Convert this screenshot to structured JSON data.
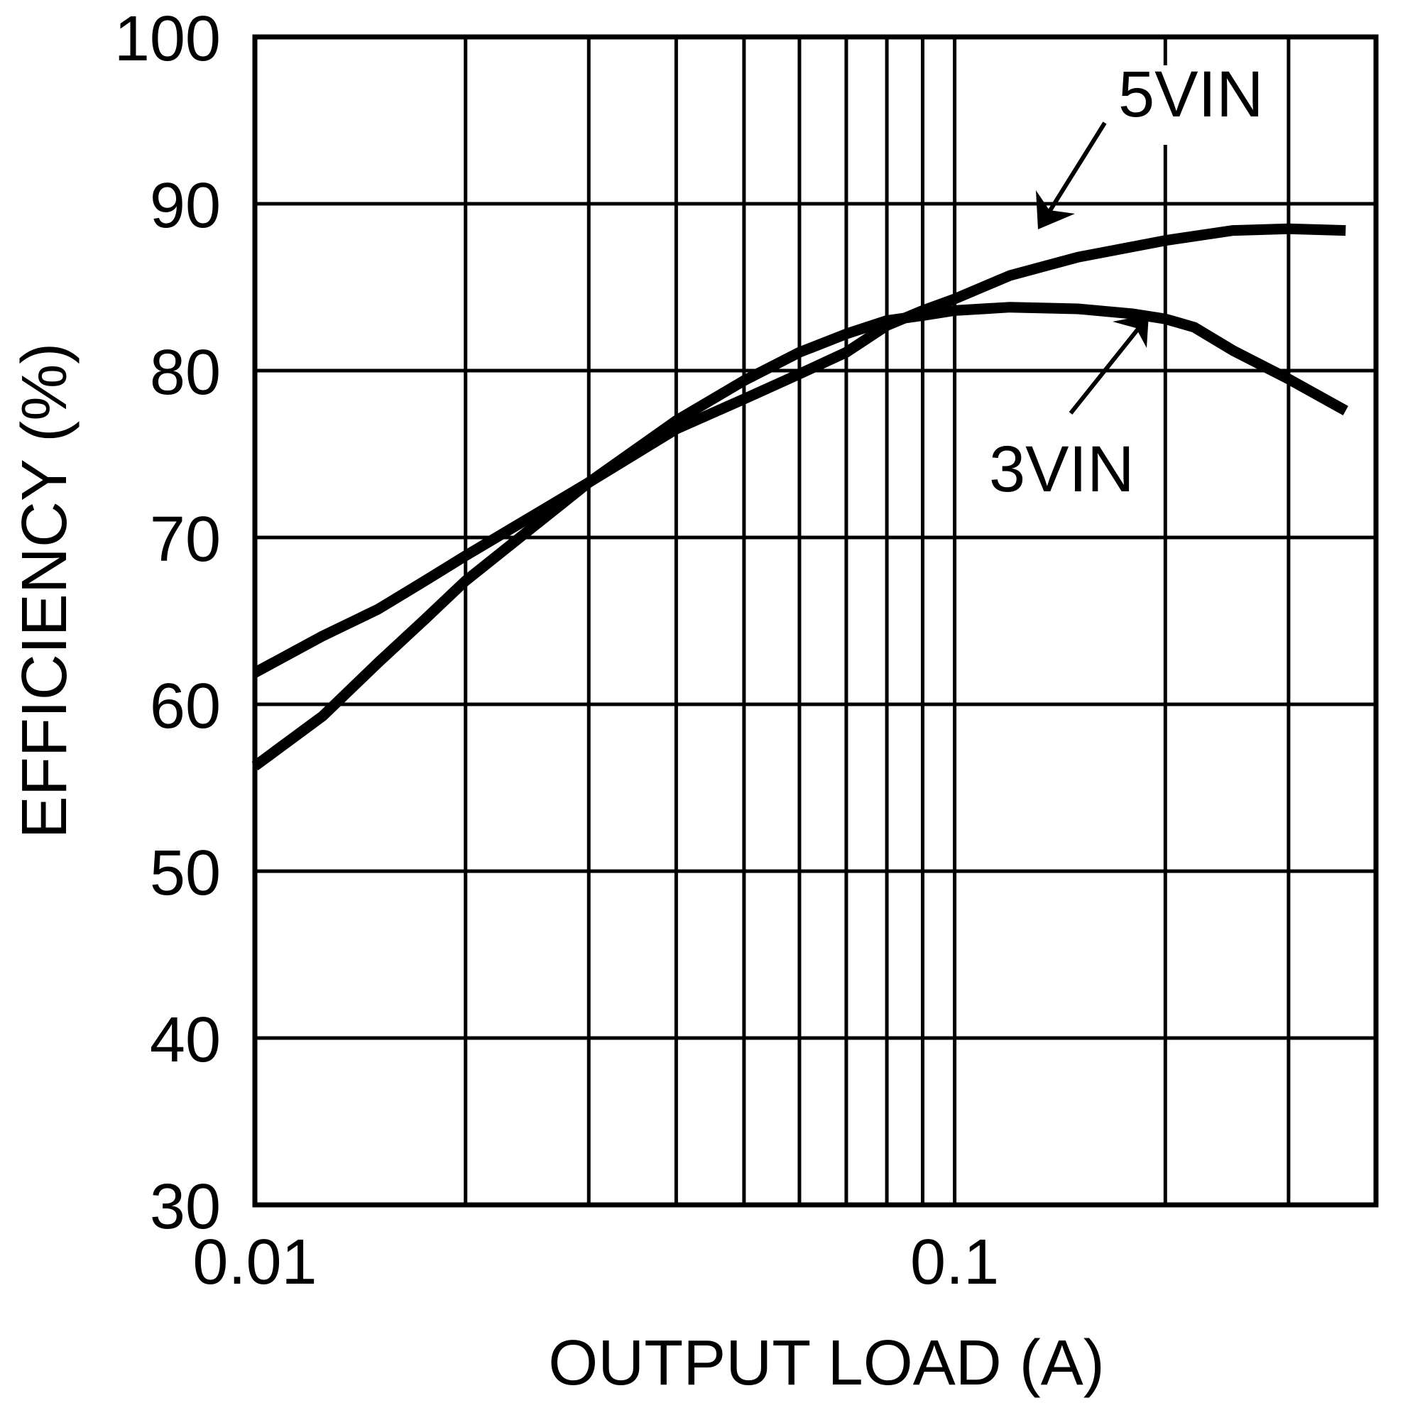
{
  "chart_data": {
    "type": "line",
    "title": "",
    "xlabel": "OUTPUT LOAD (A)",
    "ylabel": "EFFICIENCY (%)",
    "xscale": "log",
    "xlim": [
      0.01,
      0.4
    ],
    "ylim": [
      30,
      100
    ],
    "grid": true,
    "legend": "inline annotations with arrows",
    "x_tick_labels": [
      "0.01",
      "0.1"
    ],
    "x_ticks": [
      0.01,
      0.1
    ],
    "x_minor_gridlines": [
      0.02,
      0.03,
      0.04,
      0.05,
      0.06,
      0.07,
      0.08,
      0.09,
      0.2,
      0.3
    ],
    "y_ticks": [
      30,
      40,
      50,
      60,
      70,
      80,
      90,
      100
    ],
    "y_tick_labels": [
      "30",
      "40",
      "50",
      "60",
      "70",
      "80",
      "90",
      "100"
    ],
    "series": [
      {
        "name": "5VIN",
        "x": [
          0.01,
          0.0125,
          0.015,
          0.0175,
          0.02,
          0.03,
          0.04,
          0.05,
          0.06,
          0.07,
          0.08,
          0.09,
          0.1,
          0.12,
          0.15,
          0.2,
          0.25,
          0.3,
          0.362
        ],
        "values": [
          61.9,
          64.1,
          65.7,
          67.4,
          68.9,
          73.3,
          76.5,
          78.3,
          79.8,
          81.1,
          82.7,
          83.6,
          84.3,
          85.7,
          86.8,
          87.8,
          88.4,
          88.5,
          88.4
        ]
      },
      {
        "name": "3VIN",
        "x": [
          0.01,
          0.0125,
          0.015,
          0.0175,
          0.02,
          0.03,
          0.04,
          0.05,
          0.06,
          0.07,
          0.08,
          0.09,
          0.1,
          0.12,
          0.15,
          0.18,
          0.2,
          0.22,
          0.25,
          0.3,
          0.362
        ],
        "values": [
          56.3,
          59.3,
          62.5,
          65.1,
          67.4,
          73.3,
          77.0,
          79.4,
          81.1,
          82.2,
          83.0,
          83.3,
          83.6,
          83.8,
          83.7,
          83.4,
          83.1,
          82.6,
          81.2,
          79.5,
          77.6
        ]
      }
    ],
    "annotations": [
      {
        "text": "5VIN",
        "series": "5VIN"
      },
      {
        "text": "3VIN",
        "series": "3VIN"
      }
    ]
  },
  "colors": {
    "background": "#ffffff",
    "foreground": "#000000"
  }
}
